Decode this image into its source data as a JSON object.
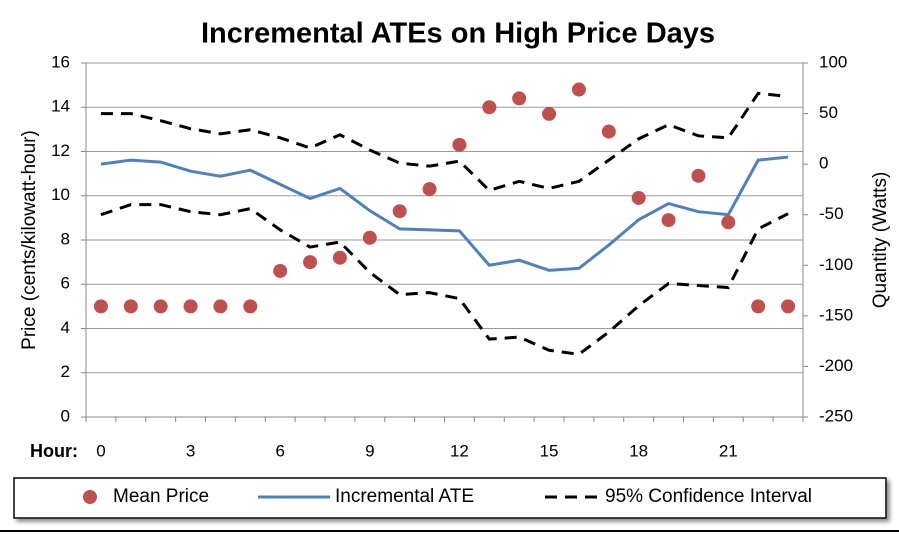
{
  "chart_data": {
    "type": "combo",
    "title": "Incremental ATEs on High Price Days",
    "ylabel": "Price (cents/kilowatt-hour)",
    "y2label": "Quantity (Watts)",
    "xlabel": "Hour:",
    "categories": [
      0,
      null,
      null,
      3,
      null,
      null,
      6,
      null,
      null,
      9,
      null,
      null,
      12,
      null,
      null,
      15,
      null,
      null,
      18,
      null,
      null,
      21,
      null,
      null
    ],
    "ylim": [
      0,
      16
    ],
    "yticks": [
      0,
      2,
      4,
      6,
      8,
      10,
      12,
      14,
      16
    ],
    "y2lim": [
      -250,
      100
    ],
    "y2ticks": [
      -250,
      -200,
      -150,
      -100,
      -50,
      0,
      50,
      100
    ],
    "grid": true,
    "legend": "bottom",
    "series": [
      {
        "name": "Mean Price",
        "type": "scatter",
        "color": "#c0504d",
        "axis": "y",
        "values": [
          5.0,
          5.0,
          5.0,
          5.0,
          5.0,
          5.0,
          6.6,
          7.0,
          7.2,
          8.1,
          9.3,
          10.3,
          12.3,
          14.0,
          14.4,
          13.7,
          14.8,
          12.9,
          9.9,
          8.9,
          10.9,
          8.8,
          5.0,
          5.0
        ]
      },
      {
        "name": "Incremental ATE",
        "type": "line",
        "color": "#4f81bd",
        "axis": "y2",
        "values": [
          0,
          4,
          2,
          -7,
          -12,
          -6,
          -20,
          -34,
          -24,
          -46,
          -64,
          -65,
          -66,
          -100,
          -95,
          -105,
          -103,
          -80,
          -55,
          -39,
          -47,
          -50,
          4,
          7
        ]
      },
      {
        "name": "95% Confidence Interval",
        "type": "band-lines",
        "color": "#000000",
        "axis": "y2",
        "upper": [
          50,
          50,
          43,
          35,
          30,
          34,
          26,
          16,
          29,
          14,
          1,
          -2,
          3,
          -26,
          -17,
          -24,
          -17,
          4,
          25,
          39,
          28,
          26,
          70,
          67
        ],
        "lower": [
          -50,
          -40,
          -40,
          -47,
          -50,
          -44,
          -65,
          -82,
          -77,
          -107,
          -129,
          -127,
          -133,
          -173,
          -171,
          -184,
          -188,
          -166,
          -140,
          -118,
          -120,
          -122,
          -64,
          -49
        ]
      }
    ]
  }
}
